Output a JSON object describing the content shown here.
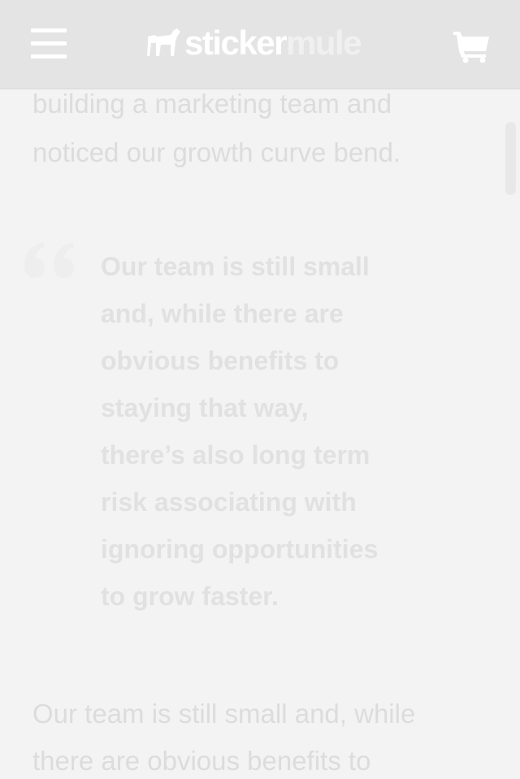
{
  "header": {
    "logo_part1": "sticker",
    "logo_part2": "mule",
    "menu_icon": "hamburger-menu-icon",
    "logo_icon": "mule-icon",
    "cart_icon": "shopping-cart-icon"
  },
  "article": {
    "para_top_line1": "building a marketing team and",
    "para_top_line2": "noticed our growth curve bend.",
    "quote_icon": "quote-mark-icon",
    "quote_lines": [
      "Our team is still small",
      "and, while there are",
      "obvious benefits to",
      "staying that way,",
      "there’s also long term",
      "risk associating with",
      "ignoring opportunities",
      "to grow faster."
    ],
    "para_bottom_line1": "Our team is still small and, while",
    "para_bottom_line2": "there are obvious benefits to"
  },
  "colors": {
    "header_bg": "#e4e4e4",
    "page_bg": "#f3f3f3",
    "text_faded": "#dcdcdc"
  }
}
